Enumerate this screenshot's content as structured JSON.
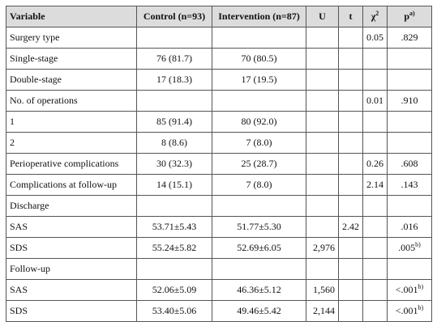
{
  "table": {
    "header": [
      "Variable",
      "Control (n=93)",
      "Intervention (n=87)",
      "U",
      "t",
      {
        "text": "χ",
        "sup": "2"
      },
      {
        "text": "p",
        "sup": "a)"
      }
    ],
    "rows": [
      [
        "Surgery type",
        null,
        null,
        null,
        null,
        "0.05",
        ".829"
      ],
      [
        "Single-stage",
        "76 (81.7)",
        "70 (80.5)",
        null,
        null,
        null,
        null
      ],
      [
        "Double-stage",
        "17 (18.3)",
        "17 (19.5)",
        null,
        null,
        null,
        null
      ],
      [
        "No. of operations",
        null,
        null,
        null,
        null,
        "0.01",
        ".910"
      ],
      [
        "1",
        "85 (91.4)",
        "80 (92.0)",
        null,
        null,
        null,
        null
      ],
      [
        "2",
        "8 (8.6)",
        "7 (8.0)",
        null,
        null,
        null,
        null
      ],
      [
        "Perioperative complications",
        "30 (32.3)",
        "25 (28.7)",
        null,
        null,
        "0.26",
        ".608"
      ],
      [
        "Complications at follow-up",
        "14 (15.1)",
        "7 (8.0)",
        null,
        null,
        "2.14",
        ".143"
      ],
      [
        "Discharge",
        null,
        null,
        null,
        null,
        null,
        null
      ],
      [
        "SAS",
        "53.71±5.43",
        "51.77±5.30",
        null,
        "2.42",
        null,
        ".016"
      ],
      [
        "SDS",
        "55.24±5.82",
        "52.69±6.05",
        "2,976",
        null,
        null,
        {
          "text": ".005",
          "sup": "b)"
        }
      ],
      [
        "Follow-up",
        null,
        null,
        null,
        null,
        null,
        null
      ],
      [
        "SAS",
        "52.06±5.09",
        "46.36±5.12",
        "1,560",
        null,
        null,
        {
          "text": "<.001",
          "sup": "b)"
        }
      ],
      [
        "SDS",
        "53.40±5.06",
        "49.46±5.42",
        "2,144",
        null,
        null,
        {
          "text": "<.001",
          "sup": "b)"
        }
      ]
    ]
  }
}
